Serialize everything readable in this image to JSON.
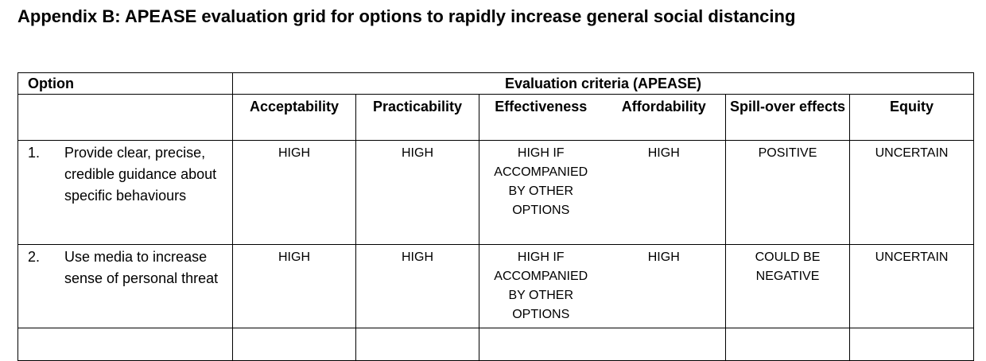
{
  "title": "Appendix B: APEASE evaluation grid for options to rapidly increase general social distancing",
  "table": {
    "option_header": "Option",
    "evaluation_header": "Evaluation criteria (APEASE)",
    "criteria": [
      "Acceptability",
      "Practicability",
      "Effectiveness",
      "Affordability",
      "Spill-over effects",
      "Equity"
    ],
    "rows": [
      {
        "number": "1.",
        "option": "Provide clear, precise, credible guidance about specific behaviours",
        "values": [
          "HIGH",
          "HIGH",
          "HIGH IF ACCOMPANIED BY OTHER OPTIONS",
          "HIGH",
          "POSITIVE",
          "UNCERTAIN"
        ]
      },
      {
        "number": "2.",
        "option": "Use media to increase sense of personal threat",
        "values": [
          "HIGH",
          "HIGH",
          "HIGH IF ACCOMPANIED BY OTHER OPTIONS",
          "HIGH",
          "COULD BE NEGATIVE",
          "UNCERTAIN"
        ]
      }
    ]
  }
}
